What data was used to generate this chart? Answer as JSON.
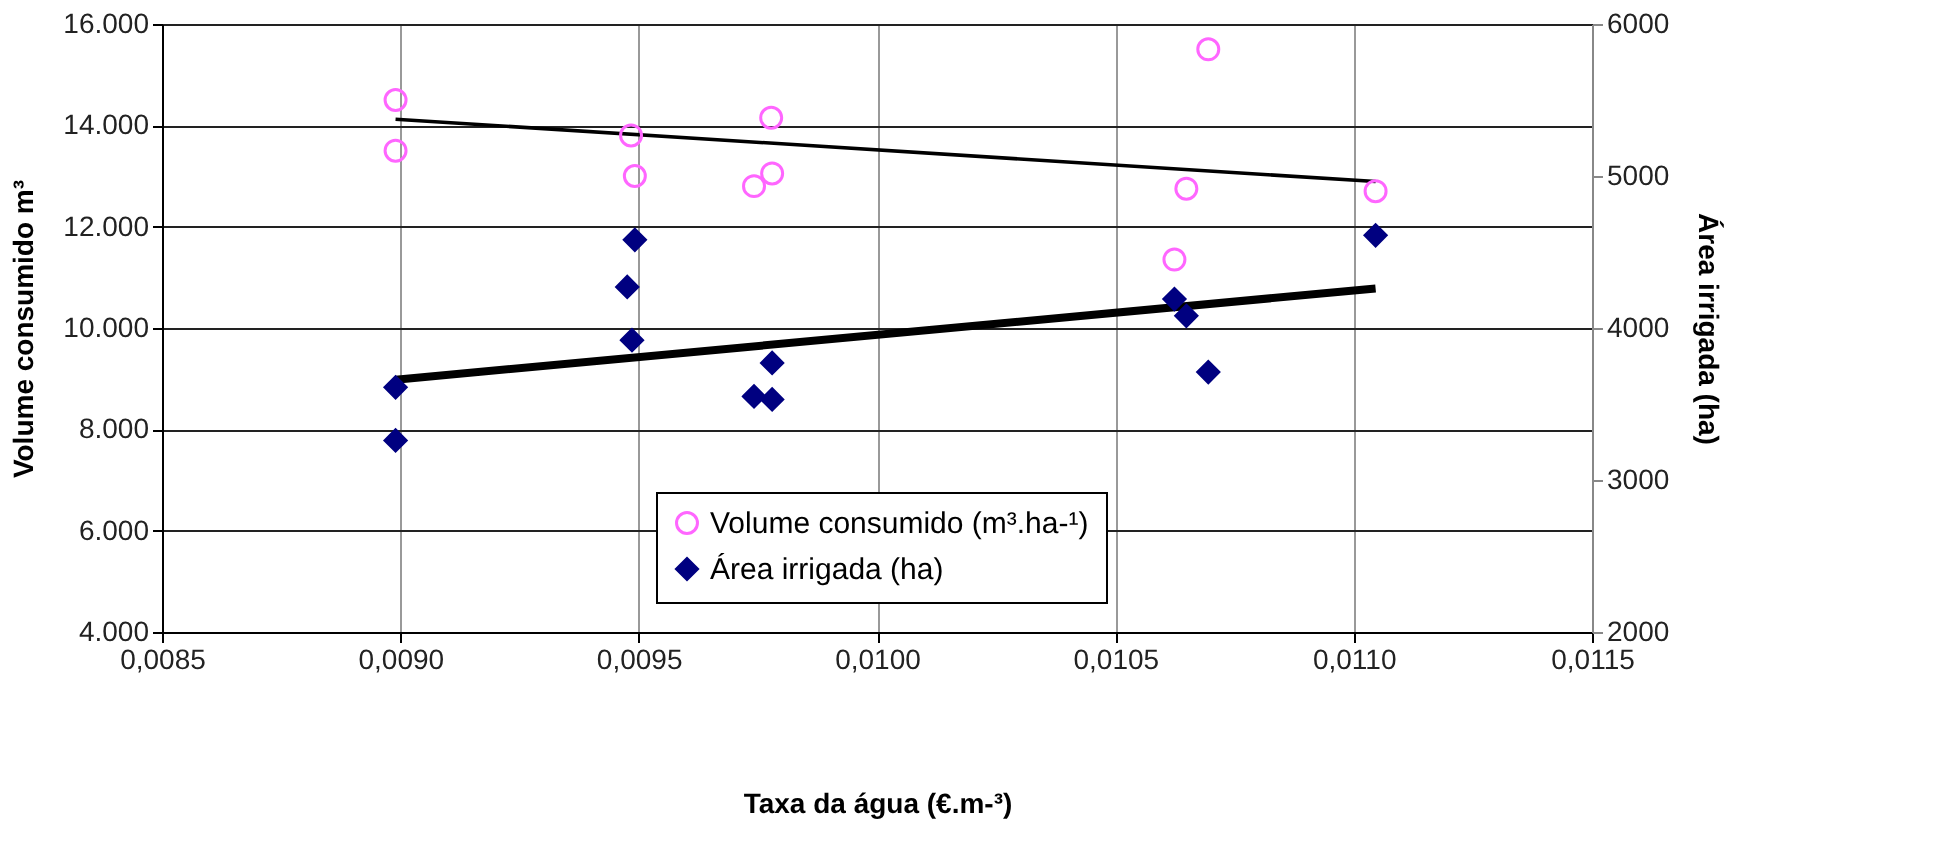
{
  "chart_data": {
    "type": "scatter",
    "xlabel": "Taxa da água (€.m-³)",
    "ylabel": "Volume consumido m³",
    "y2label": "Área irrigada (ha)",
    "xlim": [
      0.0085,
      0.0115
    ],
    "xticks": [
      {
        "value": 0.0085,
        "label": "0,0085"
      },
      {
        "value": 0.009,
        "label": "0,0090"
      },
      {
        "value": 0.0095,
        "label": "0,0095"
      },
      {
        "value": 0.01,
        "label": "0,0100"
      },
      {
        "value": 0.0105,
        "label": "0,0105"
      },
      {
        "value": 0.011,
        "label": "0,0110"
      },
      {
        "value": 0.0115,
        "label": "0,0115"
      }
    ],
    "ylim": [
      4000,
      16000
    ],
    "yticks": [
      {
        "value": 4000,
        "label": "4.000"
      },
      {
        "value": 6000,
        "label": "6.000"
      },
      {
        "value": 8000,
        "label": "8.000"
      },
      {
        "value": 10000,
        "label": "10.000"
      },
      {
        "value": 12000,
        "label": "12.000"
      },
      {
        "value": 14000,
        "label": "14.000"
      },
      {
        "value": 16000,
        "label": "16.000"
      }
    ],
    "y2lim": [
      2000,
      6000
    ],
    "y2ticks": [
      2000,
      3000,
      4000,
      5000,
      6000
    ],
    "grid": true,
    "legend": "bottom",
    "series": [
      {
        "name": "Volume consumido (m³.ha-¹)",
        "color": "#ff66ff",
        "marker": "circle",
        "x": [
          0.00899,
          0.00899,
          0.009484,
          0.009492,
          0.009742,
          0.00978,
          0.009778,
          0.010695,
          0.010649,
          0.010624,
          0.011046
        ],
        "values": [
          14500,
          13500,
          13800,
          13000,
          12800,
          13050,
          14150,
          15500,
          12750,
          11350,
          12700
        ]
      },
      {
        "name": "Área irrigada (ha)",
        "color": "#000080",
        "marker": "diamond",
        "axis": "y2",
        "x": [
          0.00899,
          0.00899,
          0.009492,
          0.009476,
          0.009486,
          0.00978,
          0.009742,
          0.00978,
          0.010624,
          0.010649,
          0.010695,
          0.011046
        ],
        "values": [
          3610,
          3260,
          4580,
          4270,
          3920,
          3770,
          3550,
          3530,
          4190,
          4080,
          3710,
          4610
        ]
      },
      {
        "type": "line",
        "color": "#000000",
        "marker": "none",
        "x": [
          0.00899,
          0.011046
        ],
        "values": [
          14120,
          12890
        ]
      },
      {
        "type": "line",
        "color": "#000000",
        "marker": "none",
        "axis": "y2",
        "x": [
          0.00899,
          0.011046
        ],
        "values": [
          3660,
          4260
        ]
      }
    ]
  }
}
